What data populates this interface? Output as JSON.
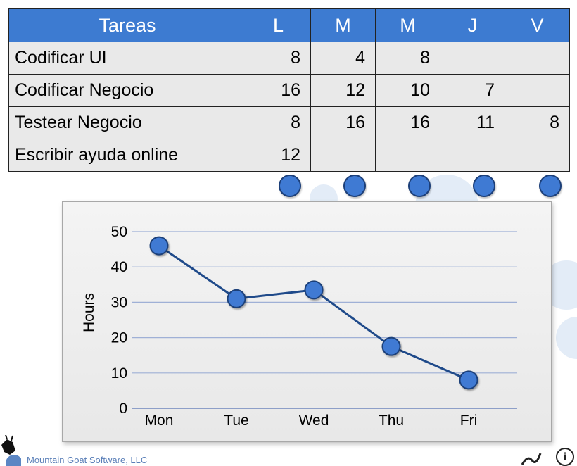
{
  "table": {
    "header": [
      "Tareas",
      "L",
      "M",
      "M",
      "J",
      "V"
    ],
    "rows": [
      {
        "task": "Codificar UI",
        "values": [
          "8",
          "4",
          "8",
          "",
          ""
        ]
      },
      {
        "task": "Codificar Negocio",
        "values": [
          "16",
          "12",
          "10",
          "7",
          ""
        ]
      },
      {
        "task": "Testear Negocio",
        "values": [
          "8",
          "16",
          "16",
          "11",
          "8"
        ]
      },
      {
        "task": "Escribir ayuda online",
        "values": [
          "12",
          "",
          "",
          "",
          ""
        ]
      }
    ]
  },
  "colors": {
    "header_bg": "#3d7bd1",
    "cell_bg": "#e9e9e9",
    "series": "#1f4a8a",
    "marker": "#3f7ad3",
    "gridline": "#9fb0d6"
  },
  "chart_data": {
    "type": "line",
    "categories": [
      "Mon",
      "Tue",
      "Wed",
      "Thu",
      "Fri"
    ],
    "series": [
      {
        "values": [
          46,
          31,
          33.5,
          17.5,
          8
        ]
      }
    ],
    "title": "",
    "xlabel": "",
    "ylabel": "Hours",
    "ylim": [
      0,
      50
    ],
    "yticks": [
      "0",
      "10",
      "20",
      "30",
      "40",
      "50"
    ],
    "grid": true,
    "legend": "none"
  },
  "footer": {
    "text": "Mountain Goat Software, LLC",
    "info_icon": "info-icon",
    "logo_icon": "goat-logo-icon"
  }
}
